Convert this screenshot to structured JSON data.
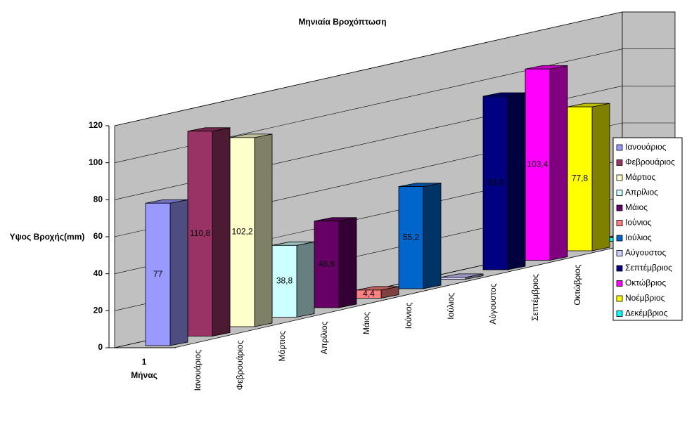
{
  "chart_data": {
    "type": "bar3d",
    "title": "Μηνιαία Βροχόπτωση",
    "y_label": "Υψος Βροχής(mm)",
    "category": "1",
    "x_label": "Μήνας",
    "ylim": [
      0,
      120
    ],
    "yticks": [
      0,
      20,
      40,
      60,
      80,
      100,
      120
    ],
    "grid": true,
    "legend": "right",
    "series": [
      {
        "name": "Ιανουάριος",
        "color": "#9999ff",
        "values": [
          77
        ],
        "value_labels": [
          "77"
        ]
      },
      {
        "name": "Φεβρουάριος",
        "color": "#993366",
        "values": [
          110.8
        ],
        "value_labels": [
          "110,8"
        ]
      },
      {
        "name": "Μάρτιος",
        "color": "#ffffcc",
        "values": [
          102.2
        ],
        "value_labels": [
          "102,2"
        ]
      },
      {
        "name": "Απρίλιος",
        "color": "#ccffff",
        "values": [
          38.8
        ],
        "value_labels": [
          "38,8"
        ]
      },
      {
        "name": "Μάιος",
        "color": "#660066",
        "values": [
          46.8
        ],
        "value_labels": [
          "46,8"
        ]
      },
      {
        "name": "Ιούνιος",
        "color": "#ff8080",
        "values": [
          4.4
        ],
        "value_labels": [
          "4,4"
        ]
      },
      {
        "name": "Ιούλιος",
        "color": "#0066cc",
        "values": [
          55.2
        ],
        "value_labels": [
          "55,2"
        ]
      },
      {
        "name": "Αύγουστος",
        "color": "#ccccff",
        "values": [
          1
        ],
        "value_labels": [
          null
        ]
      },
      {
        "name": "Σεπτέμβριος",
        "color": "#000080",
        "values": [
          93.8
        ],
        "value_labels": [
          "93,8"
        ]
      },
      {
        "name": "Οκτώβριος",
        "color": "#ff00ff",
        "values": [
          103.4
        ],
        "value_labels": [
          "103,4"
        ]
      },
      {
        "name": "Νοέμβριος",
        "color": "#ffff00",
        "values": [
          77.8
        ],
        "value_labels": [
          "77,8"
        ]
      },
      {
        "name": "Δεκέμβριος",
        "color": "#00ffff",
        "values": [
          2
        ],
        "value_labels": [
          null
        ]
      }
    ]
  }
}
